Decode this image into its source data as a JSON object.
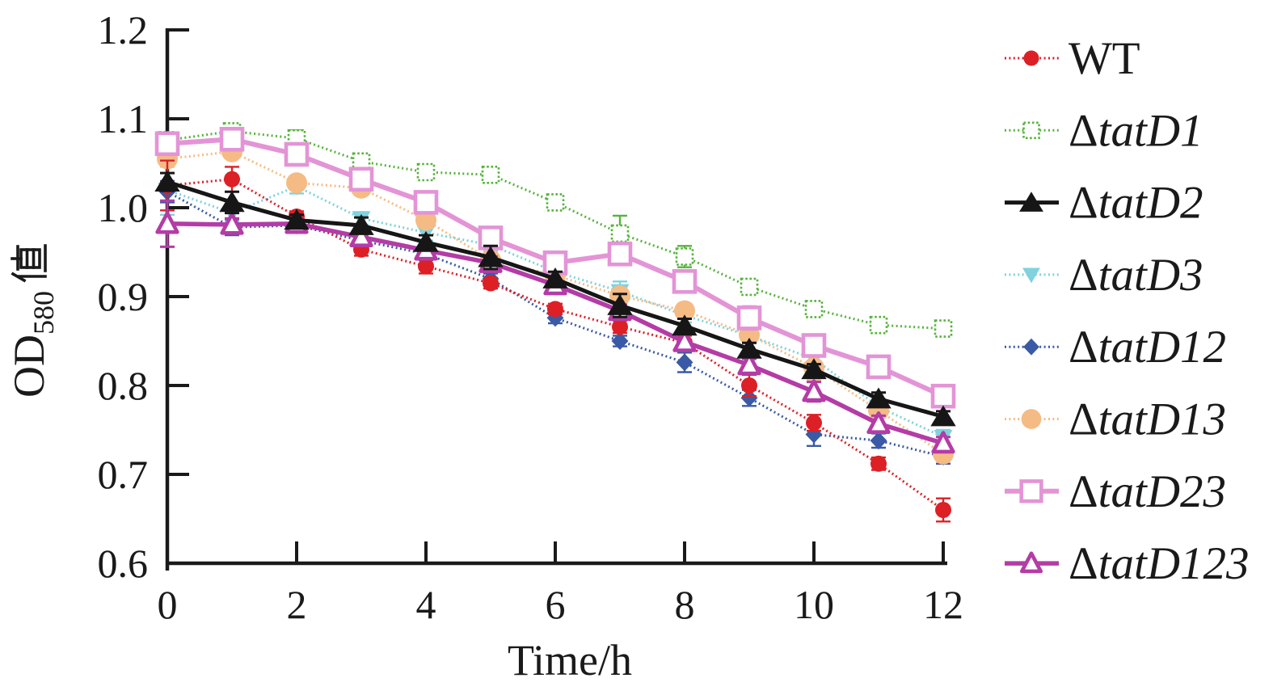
{
  "figure": {
    "background": "#ffffff",
    "axis_color": "#1a1a1a"
  },
  "chart_data": {
    "type": "line",
    "title": "",
    "xlabel": "Time/h",
    "ylabel": {
      "main": "OD",
      "sub": "580",
      "suffix": "值"
    },
    "xlim": [
      0,
      12
    ],
    "ylim": [
      0.6,
      1.2
    ],
    "xticks": [
      "0",
      "2",
      "4",
      "6",
      "8",
      "10",
      "12"
    ],
    "xtick_values": [
      0,
      2,
      4,
      6,
      8,
      10,
      12
    ],
    "yticks": [
      "0.6",
      "0.7",
      "0.8",
      "0.9",
      "1.0",
      "1.1",
      "1.2"
    ],
    "ytick_values": [
      0.6,
      0.7,
      0.8,
      0.9,
      1.0,
      1.1,
      1.2
    ],
    "grid": false,
    "legend_position": "right-outside",
    "x": [
      0,
      1,
      2,
      3,
      4,
      5,
      6,
      7,
      8,
      9,
      10,
      11,
      12
    ],
    "series": [
      {
        "name": "WT",
        "label": "WT",
        "italic": false,
        "color": "#dc2026",
        "marker": "circle-filled",
        "marker_size": 10,
        "line": "dotted",
        "line_width": 3,
        "values": [
          1.025,
          1.032,
          0.99,
          0.953,
          0.934,
          0.915,
          0.886,
          0.866,
          0.848,
          0.8,
          0.758,
          0.712,
          0.66
        ],
        "errors": [
          0.028,
          0.014,
          0.006,
          0.007,
          0.008,
          0.006,
          0.006,
          0.007,
          0.008,
          0.012,
          0.009,
          0.007,
          0.013
        ]
      },
      {
        "name": "tatD1",
        "label": "ΔtatD1",
        "italic": true,
        "color": "#57b33d",
        "marker": "square-open-dotted",
        "marker_size": 10,
        "line": "dotted",
        "line_width": 3,
        "values": [
          1.076,
          1.086,
          1.078,
          1.052,
          1.04,
          1.037,
          1.006,
          0.971,
          0.945,
          0.911,
          0.886,
          0.868,
          0.864
        ],
        "errors": [
          0.008,
          0.005,
          0.009,
          0.007,
          0.007,
          0.005,
          0.007,
          0.02,
          0.012,
          0.008,
          0.008,
          0.006,
          0.006
        ]
      },
      {
        "name": "tatD2",
        "label": "ΔtatD2",
        "italic": true,
        "color": "#161616",
        "marker": "triangle-up-filled",
        "marker_size": 14,
        "line": "solid",
        "line_width": 5,
        "values": [
          1.029,
          1.006,
          0.986,
          0.98,
          0.961,
          0.944,
          0.92,
          0.89,
          0.867,
          0.841,
          0.818,
          0.785,
          0.765
        ],
        "errors": [
          0.01,
          0.012,
          0.006,
          0.009,
          0.008,
          0.013,
          0.008,
          0.013,
          0.008,
          0.007,
          0.006,
          0.007,
          0.006
        ]
      },
      {
        "name": "tatD3",
        "label": "ΔtatD3",
        "italic": true,
        "color": "#7fd2de",
        "marker": "triangle-down-filled",
        "marker_size": 11,
        "line": "dotted",
        "line_width": 3,
        "values": [
          1.02,
          0.994,
          1.024,
          0.988,
          0.972,
          0.958,
          0.928,
          0.906,
          0.879,
          0.856,
          0.83,
          0.776,
          0.742
        ],
        "errors": [
          0.028,
          0.009,
          0.008,
          0.007,
          0.009,
          0.007,
          0.008,
          0.011,
          0.008,
          0.007,
          0.012,
          0.009,
          0.008
        ]
      },
      {
        "name": "tatD12",
        "label": "ΔtatD12",
        "italic": true,
        "color": "#3a5aa5",
        "marker": "diamond-filled",
        "marker_size": 11,
        "line": "dotted",
        "line_width": 3,
        "values": [
          1.018,
          0.978,
          0.98,
          0.963,
          0.948,
          0.92,
          0.876,
          0.85,
          0.826,
          0.786,
          0.745,
          0.738,
          0.72
        ],
        "errors": [
          0.012,
          0.009,
          0.006,
          0.007,
          0.007,
          0.006,
          0.006,
          0.006,
          0.011,
          0.009,
          0.013,
          0.008,
          0.008
        ]
      },
      {
        "name": "tatD13",
        "label": "ΔtatD13",
        "italic": true,
        "color": "#f5bb84",
        "marker": "circle-filled",
        "marker_size": 13,
        "line": "dotted",
        "line_width": 3,
        "values": [
          1.055,
          1.063,
          1.028,
          1.022,
          0.986,
          0.941,
          0.924,
          0.901,
          0.884,
          0.857,
          0.82,
          0.772,
          0.723
        ],
        "errors": [
          0.009,
          0.007,
          0.007,
          0.007,
          0.008,
          0.009,
          0.008,
          0.007,
          0.008,
          0.007,
          0.014,
          0.008,
          0.008
        ]
      },
      {
        "name": "tatD23",
        "label": "ΔtatD23",
        "italic": true,
        "color": "#e394d6",
        "marker": "square-open",
        "marker_size": 13,
        "line": "solid",
        "line_width": 6,
        "values": [
          1.072,
          1.077,
          1.06,
          1.032,
          1.006,
          0.966,
          0.938,
          0.948,
          0.917,
          0.876,
          0.845,
          0.821,
          0.788
        ],
        "errors": [
          0.011,
          0.007,
          0.008,
          0.011,
          0.009,
          0.007,
          0.008,
          0.011,
          0.008,
          0.013,
          0.011,
          0.007,
          0.007
        ]
      },
      {
        "name": "tatD123",
        "label": "ΔtatD123",
        "italic": true,
        "color": "#b43ca6",
        "marker": "triangle-up-open",
        "marker_size": 13,
        "line": "solid",
        "line_width": 5.5,
        "values": [
          0.982,
          0.981,
          0.982,
          0.967,
          0.952,
          0.938,
          0.913,
          0.884,
          0.849,
          0.823,
          0.793,
          0.757,
          0.735
        ],
        "errors": [
          0.026,
          0.007,
          0.006,
          0.007,
          0.007,
          0.007,
          0.006,
          0.007,
          0.008,
          0.007,
          0.011,
          0.009,
          0.007
        ]
      }
    ]
  }
}
